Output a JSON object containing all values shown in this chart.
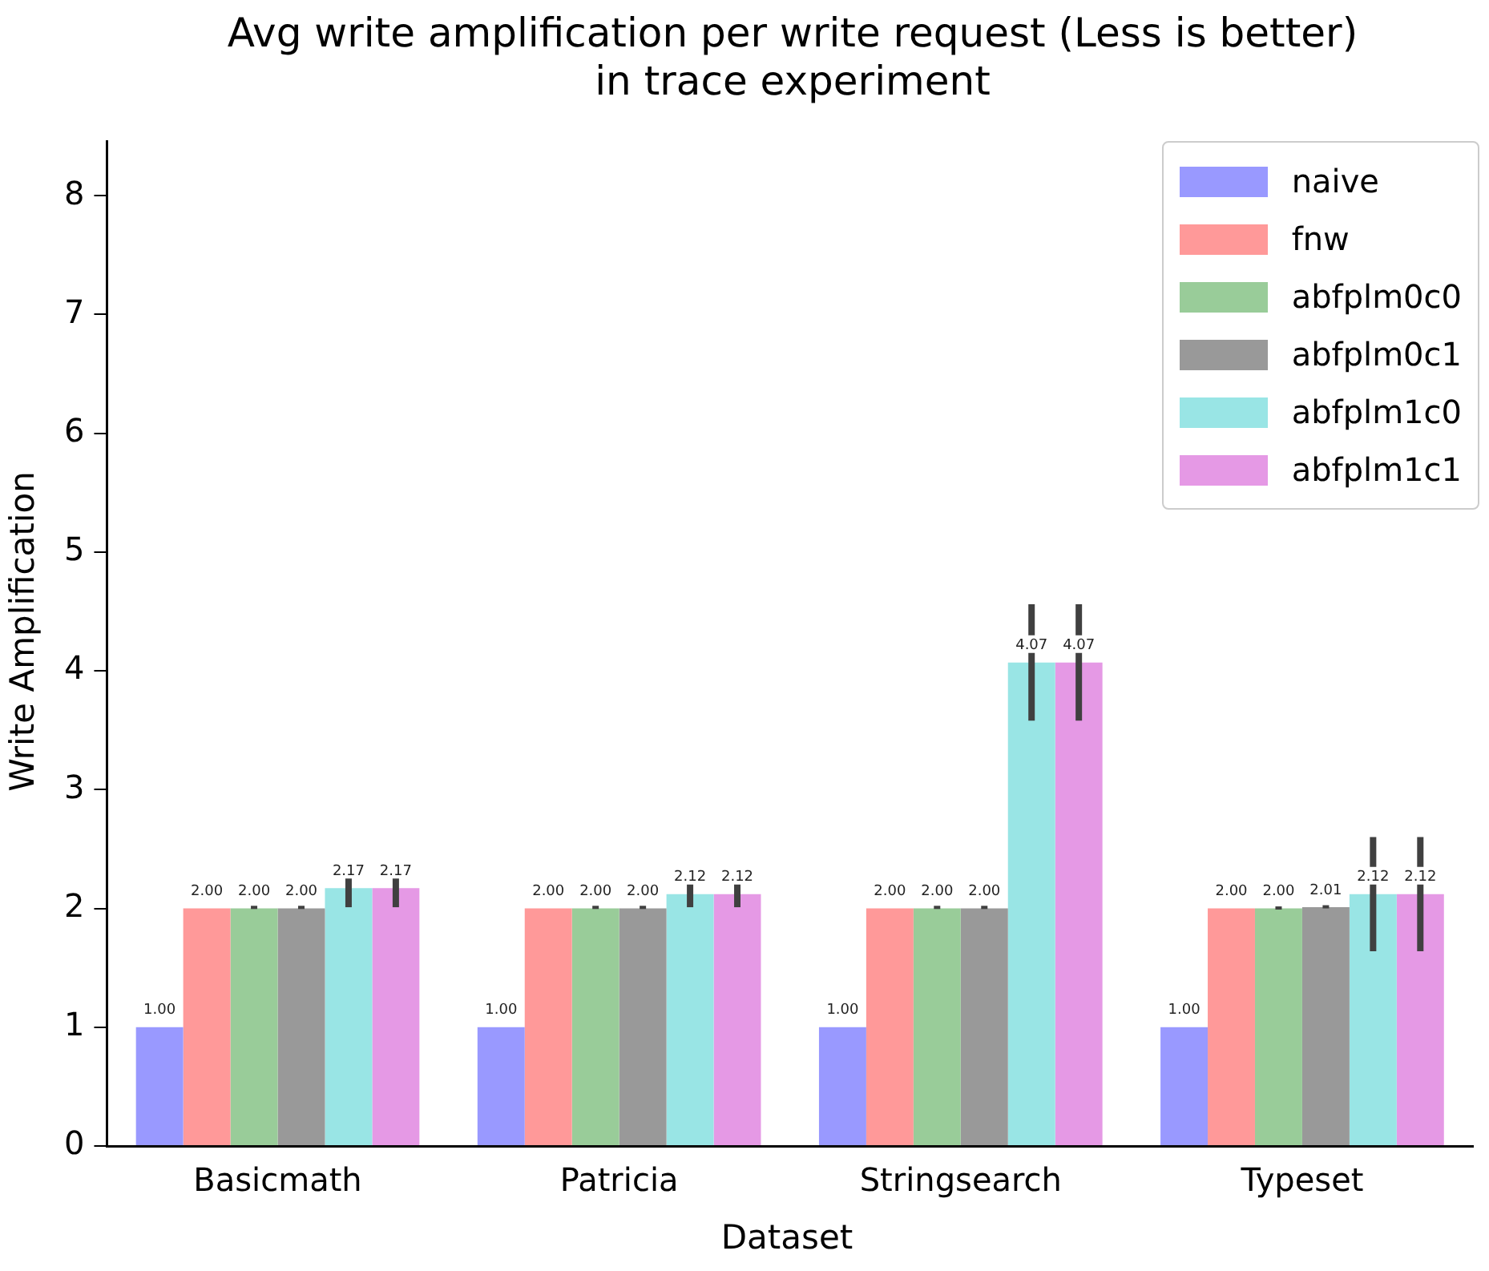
{
  "chart_data": {
    "type": "bar",
    "title": "Avg write amplification per write request (Less is better)\nin trace experiment",
    "xlabel": "Dataset",
    "ylabel": "Write Amplification",
    "categories": [
      "Basicmath",
      "Patricia",
      "Stringsearch",
      "Typeset"
    ],
    "series": [
      {
        "name": "naive",
        "color": "#9999ff",
        "values": [
          1.0,
          1.0,
          1.0,
          1.0
        ],
        "value_labels": [
          "1.00",
          "1.00",
          "1.00",
          "1.00"
        ]
      },
      {
        "name": "fnw",
        "color": "#ff9999",
        "values": [
          2.0,
          2.0,
          2.0,
          2.0
        ],
        "value_labels": [
          "2.00",
          "2.00",
          "2.00",
          "2.00"
        ]
      },
      {
        "name": "abfplm0c0",
        "color": "#99cc99",
        "values": [
          2.0,
          2.0,
          2.0,
          2.0
        ],
        "errors": [
          0.005,
          0.005,
          0.005,
          0.01
        ],
        "value_labels": [
          "2.00",
          "2.00",
          "2.00",
          "2.00"
        ]
      },
      {
        "name": "abfplm0c1",
        "color": "#999999",
        "values": [
          2.0,
          2.0,
          2.0,
          2.01
        ],
        "errors": [
          0.005,
          0.005,
          0.005,
          0.01
        ],
        "value_labels": [
          "2.00",
          "2.00",
          "2.00",
          "2.01"
        ]
      },
      {
        "name": "abfplm1c0",
        "color": "#99e5e5",
        "values": [
          2.17,
          2.12,
          4.07,
          2.12
        ],
        "errors": [
          0.16,
          0.11,
          0.49,
          0.48
        ],
        "value_labels": [
          "2.17",
          "2.12",
          "4.07",
          "2.12"
        ]
      },
      {
        "name": "abfplm1c1",
        "color": "#e599e5",
        "values": [
          2.17,
          2.12,
          4.07,
          2.12
        ],
        "errors": [
          0.16,
          0.11,
          0.49,
          0.48
        ],
        "value_labels": [
          "2.17",
          "2.12",
          "4.07",
          "2.12"
        ]
      }
    ],
    "ylim": [
      0,
      8.46
    ],
    "yticks": [
      0,
      1,
      2,
      3,
      4,
      5,
      6,
      7,
      8
    ],
    "grid": false,
    "legend": "top right"
  }
}
